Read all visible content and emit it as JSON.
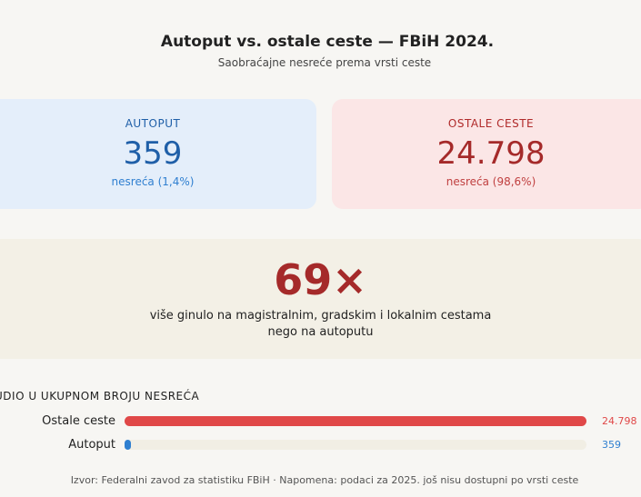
{
  "header": {
    "title": "Autoput  vs. ostale ceste — FBiH 2024.",
    "subtitle": "Saobraćajne nesreće prema vrsti ceste"
  },
  "cards": [
    {
      "label": "AUTOPUT",
      "value": "359",
      "note": "nesreća (1,4%)"
    },
    {
      "label": "OSTALE CESTE",
      "value": "24.798",
      "note": "nesreća (98,6%)"
    }
  ],
  "highlight": {
    "value": "69×",
    "text": "više ginulo na magistralnim, gradskim i lokalnim cestama nego na autoputu"
  },
  "bars": {
    "title": "UDIO U UKUPNOM BROJU NESREĆA",
    "xlim": [
      0,
      24798
    ],
    "rows": [
      {
        "name": "Ostale ceste",
        "value": 24798,
        "value_label": "24.798",
        "color": "#e04848"
      },
      {
        "name": "Autoput",
        "value": 359,
        "value_label": "359",
        "color": "#2f7fd0"
      }
    ]
  },
  "footer": "Izvor: Federalni zavod za statistiku FBiH · Napomena: podaci za 2025. još nisu dostupni po vrsti ceste"
}
